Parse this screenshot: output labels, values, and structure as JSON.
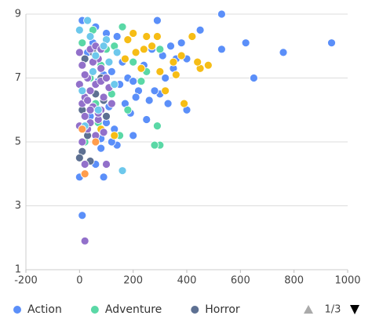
{
  "chart_data": {
    "type": "scatter",
    "xlim": [
      -200,
      1000
    ],
    "xticks": [
      -200,
      0,
      200,
      400,
      600,
      800,
      1000
    ],
    "ylim": [
      1,
      9
    ],
    "yticks": [
      1,
      3,
      5,
      7,
      9
    ],
    "grid": true,
    "legend": "bottom-left",
    "legend_page": "1/3",
    "series": [
      {
        "name": "Action",
        "color": "#5b8ff9",
        "x": [
          530,
          290,
          10,
          620,
          940,
          760,
          650,
          530,
          450,
          400,
          380,
          350,
          320,
          300,
          280,
          260,
          330,
          400,
          250,
          200,
          140,
          60,
          90,
          10,
          0,
          120,
          150,
          180,
          220,
          240,
          270,
          310,
          340,
          360,
          170,
          190,
          210,
          100,
          80,
          130,
          30,
          50,
          70,
          110,
          160,
          40,
          20,
          90,
          140,
          60,
          120,
          200,
          230,
          80,
          100
        ],
        "y": [
          9,
          8.8,
          8.8,
          8.1,
          8.1,
          7.8,
          7.0,
          7.9,
          8.5,
          7.6,
          8.1,
          7.3,
          7.0,
          6.5,
          6.6,
          6.3,
          6.2,
          6.0,
          5.7,
          5.2,
          4.9,
          4.3,
          3.9,
          2.7,
          3.9,
          7.2,
          6.8,
          7.0,
          6.6,
          7.4,
          7.9,
          7.7,
          8.0,
          7.6,
          6.2,
          5.9,
          6.4,
          5.6,
          5.1,
          5.4,
          7.8,
          8.1,
          6.9,
          6.1,
          7.5,
          5.8,
          6.3,
          7.1,
          8.3,
          8.6,
          5.0,
          6.9,
          7.3,
          4.8,
          8.4
        ]
      },
      {
        "name": "Adventure",
        "color": "#5ad8a6",
        "x": [
          300,
          280,
          290,
          160,
          50,
          80,
          40,
          300,
          120,
          20,
          60,
          200,
          230,
          150,
          100,
          10,
          180,
          70,
          130,
          250
        ],
        "y": [
          4.9,
          4.9,
          5.5,
          8.6,
          8.5,
          7.4,
          7.0,
          7.9,
          6.5,
          5.0,
          6.2,
          7.5,
          6.9,
          5.2,
          7.9,
          8.1,
          6.0,
          5.6,
          8.0,
          7.2
        ]
      },
      {
        "name": "Horror",
        "color": "#5d7092",
        "x": [
          10,
          40,
          0,
          60,
          30,
          100,
          20,
          80,
          10,
          50,
          90
        ],
        "y": [
          4.7,
          4.4,
          4.5,
          6.5,
          5.2,
          5.8,
          7.6,
          7.0,
          6.0,
          7.8,
          6.3
        ]
      },
      {
        "color": "#f6bd16",
        "x": [
          200,
          180,
          250,
          290,
          420,
          480,
          450,
          380,
          440,
          350,
          360,
          300,
          320,
          210,
          230,
          20,
          170,
          390,
          130,
          80,
          240,
          270
        ],
        "y": [
          8.4,
          8.2,
          8.3,
          8.3,
          8.3,
          7.4,
          7.3,
          7.7,
          7.5,
          7.5,
          7.1,
          7.2,
          6.6,
          7.8,
          7.3,
          4.0,
          7.6,
          6.2,
          5.2,
          5.4,
          7.9,
          8.0
        ]
      },
      {
        "color": "#9270ca",
        "x": [
          20,
          20,
          100,
          0,
          10,
          30,
          40,
          50,
          60,
          70,
          80,
          90,
          10,
          20,
          30,
          40,
          50,
          60,
          70,
          80,
          0,
          20,
          40,
          60,
          80,
          100,
          120,
          10,
          30,
          50,
          70,
          90,
          110,
          0,
          20,
          40,
          60,
          80
        ],
        "y": [
          1.9,
          4.3,
          4.3,
          7.8,
          7.4,
          7.0,
          6.6,
          7.2,
          6.8,
          7.6,
          6.0,
          6.4,
          6.2,
          5.8,
          5.4,
          5.6,
          6.1,
          5.2,
          5.7,
          6.9,
          6.8,
          6.4,
          7.9,
          8.0,
          7.3,
          7.0,
          6.2,
          5.0,
          6.3,
          7.5,
          5.9,
          5.3,
          6.7,
          5.5,
          7.1,
          6.0,
          7.7,
          7.9
        ]
      },
      {
        "color": "#6dc8ec",
        "x": [
          160,
          0,
          30,
          100,
          140,
          10,
          50,
          20,
          70,
          110,
          90,
          130,
          40,
          60
        ],
        "y": [
          4.1,
          8.5,
          8.8,
          8.2,
          7.8,
          6.6,
          7.2,
          5.5,
          6.0,
          7.5,
          8.0,
          6.8,
          8.3,
          7.7
        ]
      },
      {
        "color": "#ff9d4d",
        "x": [
          20,
          60,
          10
        ],
        "y": [
          4.0,
          5.0,
          5.4
        ]
      }
    ]
  }
}
